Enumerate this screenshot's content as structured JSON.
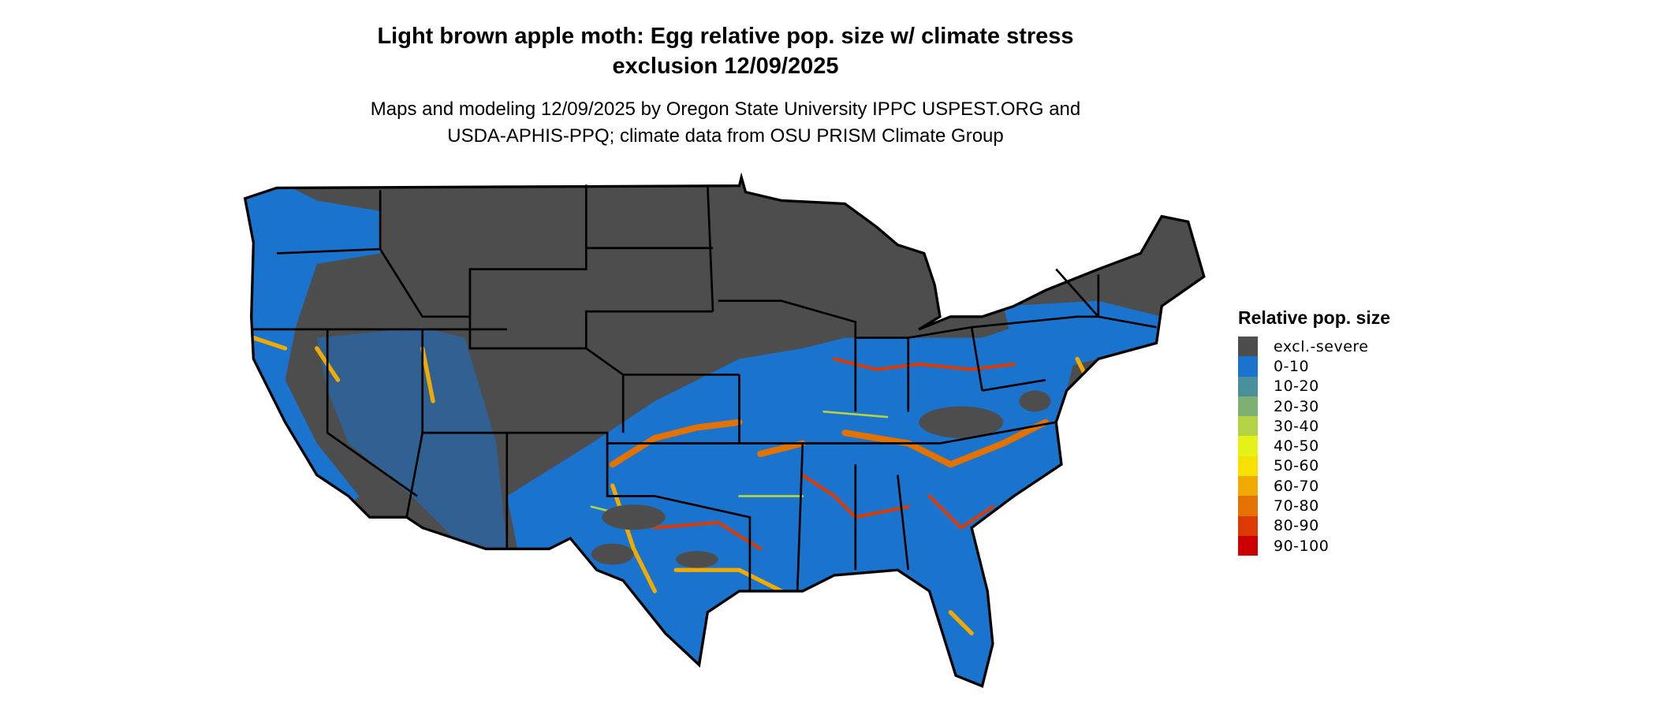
{
  "title_line1": "Light brown apple moth: Egg relative pop. size w/ climate stress",
  "title_line2": "exclusion 12/09/2025",
  "subtitle_line1": "Maps and modeling 12/09/2025 by Oregon State University IPPC USPEST.ORG and",
  "subtitle_line2": "USDA-APHIS-PPQ; climate data from OSU PRISM Climate Group",
  "legend": {
    "title": "Relative pop. size",
    "items": [
      {
        "label": "excl.-severe",
        "color": "#4d4d4d"
      },
      {
        "label": "0-10",
        "color": "#1a73cc"
      },
      {
        "label": "10-20",
        "color": "#4a8f9c"
      },
      {
        "label": "20-30",
        "color": "#7db072"
      },
      {
        "label": "30-40",
        "color": "#b3d244"
      },
      {
        "label": "40-50",
        "color": "#e5f218"
      },
      {
        "label": "50-60",
        "color": "#f7e100"
      },
      {
        "label": "60-70",
        "color": "#f0aa00"
      },
      {
        "label": "70-80",
        "color": "#e47200"
      },
      {
        "label": "80-90",
        "color": "#dc3a00"
      },
      {
        "label": "90-100",
        "color": "#cc0000"
      }
    ]
  },
  "map": {
    "region": "Contiguous United States",
    "state_borders_color": "#000000"
  }
}
